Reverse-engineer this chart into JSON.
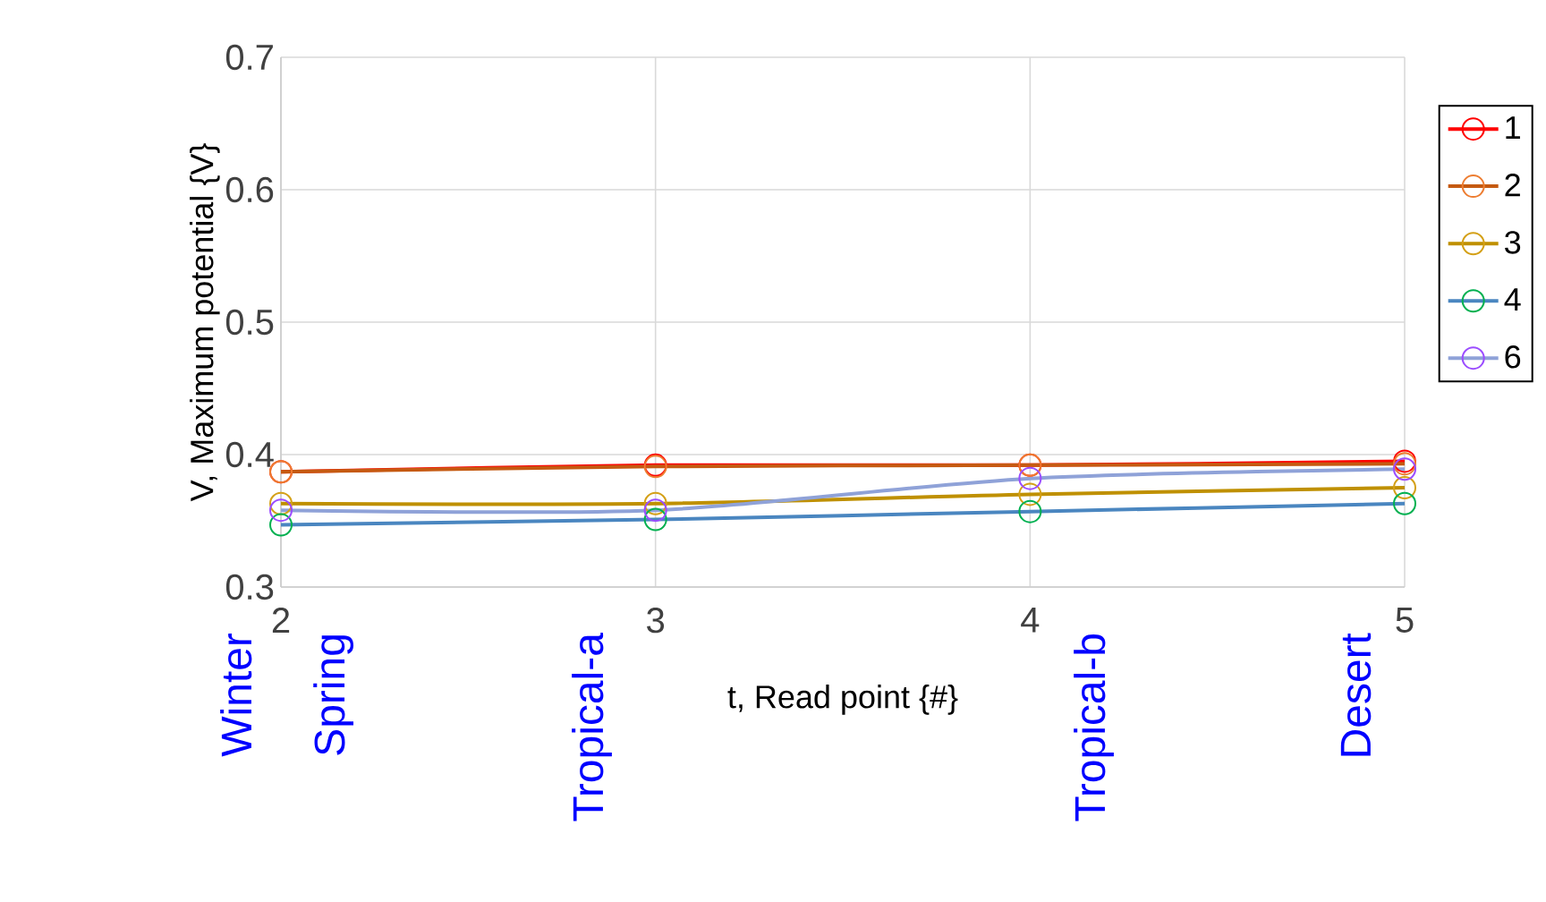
{
  "chart_data": {
    "type": "line",
    "xlabel": "t, Read point {#}",
    "ylabel": "V, Maximum potential {V}",
    "x": [
      2,
      3,
      4,
      5
    ],
    "series": [
      {
        "name": "1",
        "color": "#ff0000",
        "colors": [
          "#ff0000",
          "#ff0000",
          "#ff0000",
          "#ff0000"
        ],
        "values": [
          0.387,
          0.392,
          0.392,
          0.395
        ]
      },
      {
        "name": "2",
        "color": "#c55a11",
        "colors": [
          "#ed7d31",
          "#ed7d31",
          "#ed7d31",
          "#ed7d31"
        ],
        "values": [
          0.387,
          0.391,
          0.392,
          0.393
        ]
      },
      {
        "name": "3",
        "color": "#bf9000",
        "colors": [
          "#d4a017",
          "#d4a017",
          "#d4a017",
          "#d4a017"
        ],
        "values": [
          0.363,
          0.363,
          0.37,
          0.375
        ]
      },
      {
        "name": "4",
        "color": "#4a86c0",
        "colors": [
          "#00b050",
          "#00b050",
          "#00b050",
          "#00b050"
        ],
        "values": [
          0.347,
          0.351,
          0.357,
          0.363
        ]
      },
      {
        "name": "6",
        "color": "#8fa2d8",
        "colors": [
          "#9b4dff",
          "#9b4dff",
          "#9b4dff",
          "#9b4dff"
        ],
        "values": [
          0.358,
          0.358,
          0.382,
          0.389
        ]
      }
    ],
    "xlim": [
      2,
      5
    ],
    "ylim": [
      0.3,
      0.7
    ],
    "xticks": [
      2,
      3,
      4,
      5
    ],
    "yticks": [
      0.3,
      0.4,
      0.5,
      0.6,
      0.7
    ],
    "grid": true,
    "legend": "right",
    "marker": "circle",
    "line_style": "solid",
    "annotations": [
      "Winter",
      "Spring",
      "Tropical-a",
      "Tropical-b",
      "Desert"
    ]
  }
}
